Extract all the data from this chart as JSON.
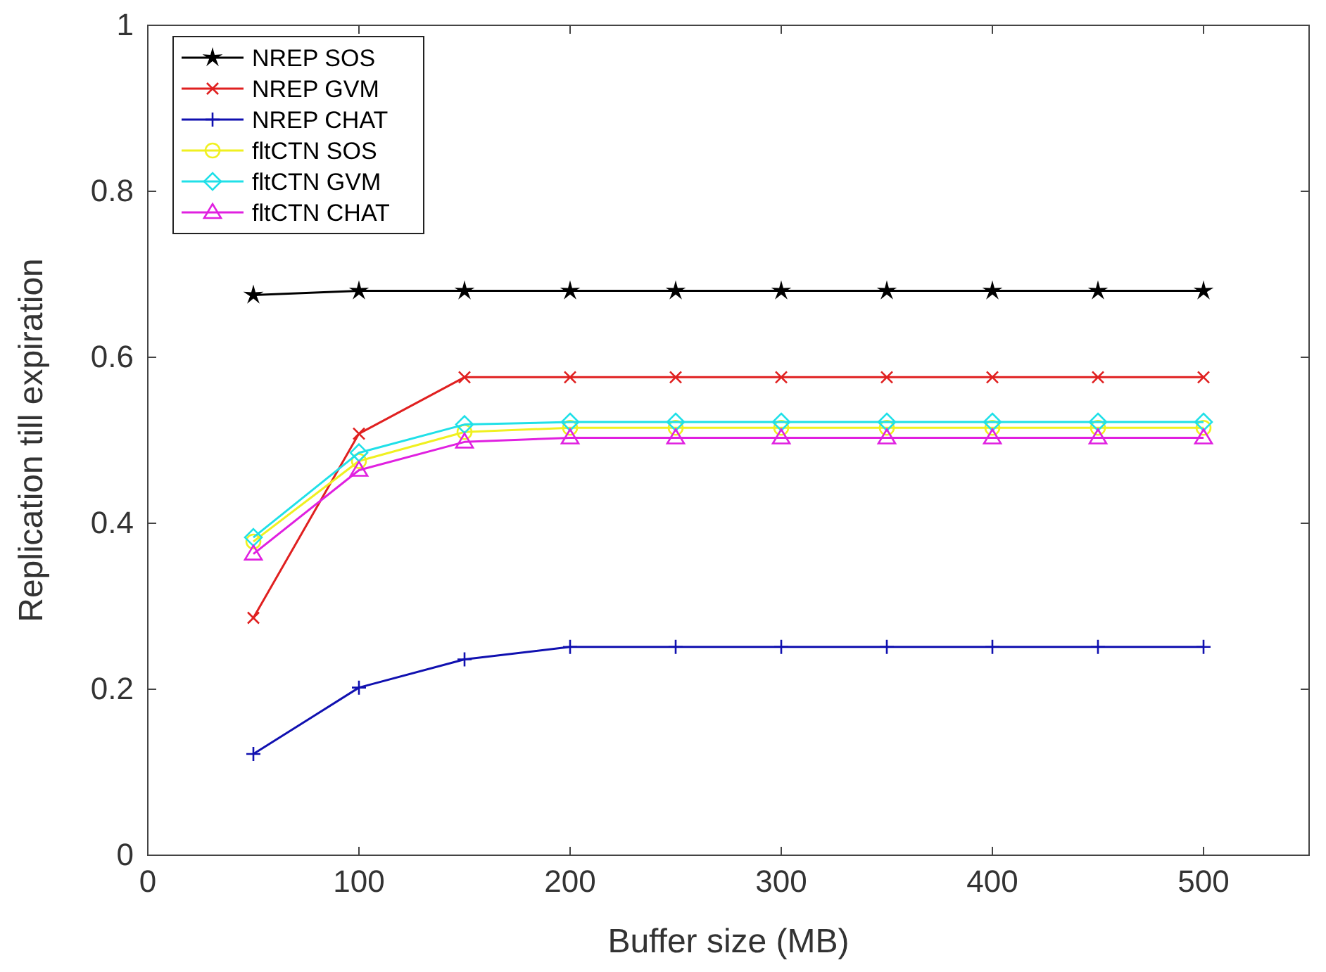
{
  "chart_data": {
    "type": "line",
    "xlabel": "Buffer size (MB)",
    "ylabel": "Replication till expiration",
    "x": [
      50,
      100,
      150,
      200,
      250,
      300,
      350,
      400,
      450,
      500
    ],
    "xlim": [
      0,
      550
    ],
    "xticks": [
      0,
      100,
      200,
      300,
      400,
      500
    ],
    "ylim": [
      0,
      1
    ],
    "yticks": [
      0,
      0.2,
      0.4,
      0.6,
      0.8,
      1
    ],
    "grid": false,
    "legend": "top left",
    "line_style": "solid",
    "series": [
      {
        "name": "NREP SOS",
        "color": "#000000",
        "marker": "star",
        "values": [
          0.675,
          0.68,
          0.68,
          0.68,
          0.68,
          0.68,
          0.68,
          0.68,
          0.68,
          0.68
        ]
      },
      {
        "name": "NREP GVM",
        "color": "#e02020",
        "marker": "x",
        "values": [
          0.286,
          0.508,
          0.576,
          0.576,
          0.576,
          0.576,
          0.576,
          0.576,
          0.576,
          0.576
        ]
      },
      {
        "name": "NREP CHAT",
        "color": "#1010b0",
        "marker": "plus",
        "values": [
          0.122,
          0.202,
          0.236,
          0.251,
          0.251,
          0.251,
          0.251,
          0.251,
          0.251,
          0.251
        ]
      },
      {
        "name": "fltCTN SOS",
        "color": "#f0f020",
        "marker": "circle",
        "values": [
          0.378,
          0.475,
          0.51,
          0.515,
          0.515,
          0.515,
          0.515,
          0.515,
          0.515,
          0.515
        ]
      },
      {
        "name": "fltCTN GVM",
        "color": "#20e0e8",
        "marker": "diamond",
        "values": [
          0.383,
          0.485,
          0.519,
          0.522,
          0.522,
          0.522,
          0.522,
          0.522,
          0.522,
          0.522
        ]
      },
      {
        "name": "fltCTN CHAT",
        "color": "#e020e0",
        "marker": "triangle",
        "values": [
          0.363,
          0.464,
          0.498,
          0.503,
          0.503,
          0.503,
          0.503,
          0.503,
          0.503,
          0.503
        ]
      }
    ]
  }
}
